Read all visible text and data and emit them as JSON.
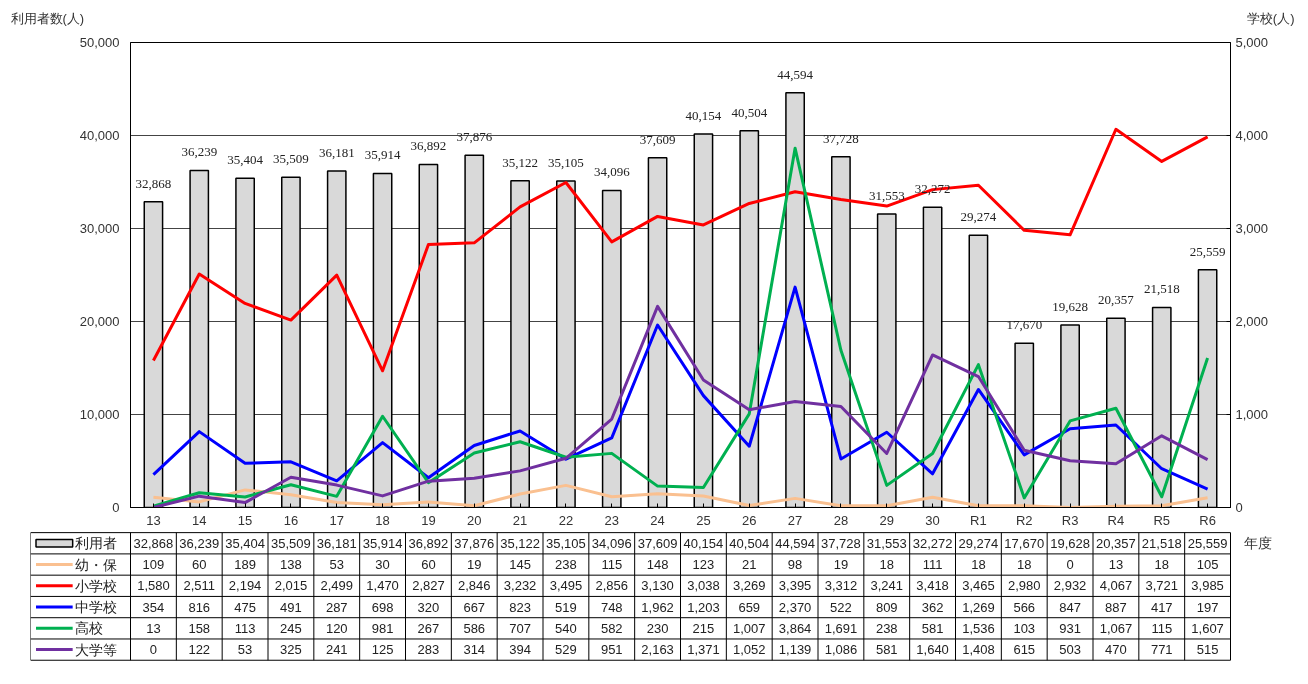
{
  "chart_data": {
    "type": "bar",
    "ylabel": "利用者数(人)",
    "y2label": "学校(人)",
    "xlabel": "年度",
    "categories": [
      "13",
      "14",
      "15",
      "16",
      "17",
      "18",
      "19",
      "20",
      "21",
      "22",
      "23",
      "24",
      "25",
      "26",
      "27",
      "28",
      "29",
      "30",
      "R1",
      "R2",
      "R3",
      "R4",
      "R5",
      "R6"
    ],
    "series": [
      {
        "name": "利用者",
        "color": "#d9d9d9",
        "values": [
          32868,
          36239,
          35404,
          35509,
          36181,
          35914,
          36892,
          37876,
          35122,
          35105,
          34096,
          37609,
          40154,
          40504,
          44594,
          37728,
          31553,
          32272,
          29274,
          17670,
          19628,
          20357,
          21518,
          25559
        ],
        "value_labels": [
          "32,868",
          "36,239",
          "35,404",
          "35,509",
          "36,181",
          "35,914",
          "36,892",
          "37,876",
          "35,122",
          "35,105",
          "34,096",
          "37,609",
          "40,154",
          "40,504",
          "44,594",
          "37,728",
          "31,553",
          "32,272",
          "29,274",
          "17,670",
          "19,628",
          "20,357",
          "21,518",
          "25,559"
        ]
      },
      {
        "name": "幼・保",
        "type": "line",
        "axis": "y2",
        "color": "#fac090",
        "values": [
          109,
          60,
          189,
          138,
          53,
          30,
          60,
          19,
          145,
          238,
          115,
          148,
          123,
          21,
          98,
          19,
          18,
          111,
          18,
          18,
          0,
          13,
          18,
          105
        ],
        "value_labels": [
          "109",
          "60",
          "189",
          "138",
          "53",
          "30",
          "60",
          "19",
          "145",
          "238",
          "115",
          "148",
          "123",
          "21",
          "98",
          "19",
          "18",
          "111",
          "18",
          "18",
          "0",
          "13",
          "18",
          "105"
        ]
      },
      {
        "name": "小学校",
        "type": "line",
        "axis": "y2",
        "color": "#ff0000",
        "values": [
          1580,
          2511,
          2194,
          2015,
          2499,
          1470,
          2827,
          2846,
          3232,
          3495,
          2856,
          3130,
          3038,
          3269,
          3395,
          3312,
          3241,
          3418,
          3465,
          2980,
          2932,
          4067,
          3721,
          3985
        ],
        "value_labels": [
          "1,580",
          "2,511",
          "2,194",
          "2,015",
          "2,499",
          "1,470",
          "2,827",
          "2,846",
          "3,232",
          "3,495",
          "2,856",
          "3,130",
          "3,038",
          "3,269",
          "3,395",
          "3,312",
          "3,241",
          "3,418",
          "3,465",
          "2,980",
          "2,932",
          "4,067",
          "3,721",
          "3,985"
        ]
      },
      {
        "name": "中学校",
        "type": "line",
        "axis": "y2",
        "color": "#0000ff",
        "values": [
          354,
          816,
          475,
          491,
          287,
          698,
          320,
          667,
          823,
          519,
          748,
          1962,
          1203,
          659,
          2370,
          522,
          809,
          362,
          1269,
          566,
          847,
          887,
          417,
          197
        ],
        "value_labels": [
          "354",
          "816",
          "475",
          "491",
          "287",
          "698",
          "320",
          "667",
          "823",
          "519",
          "748",
          "1,962",
          "1,203",
          "659",
          "2,370",
          "522",
          "809",
          "362",
          "1,269",
          "566",
          "847",
          "887",
          "417",
          "197"
        ]
      },
      {
        "name": "高校",
        "type": "line",
        "axis": "y2",
        "color": "#00b050",
        "values": [
          13,
          158,
          113,
          245,
          120,
          981,
          267,
          586,
          707,
          540,
          582,
          230,
          215,
          1007,
          3864,
          1691,
          238,
          581,
          1536,
          103,
          931,
          1067,
          115,
          1607
        ],
        "value_labels": [
          "13",
          "158",
          "113",
          "245",
          "120",
          "981",
          "267",
          "586",
          "707",
          "540",
          "582",
          "230",
          "215",
          "1,007",
          "3,864",
          "1,691",
          "238",
          "581",
          "1,536",
          "103",
          "931",
          "1,067",
          "115",
          "1,607"
        ]
      },
      {
        "name": "大学等",
        "type": "line",
        "axis": "y2",
        "color": "#7030a0",
        "values": [
          0,
          122,
          53,
          325,
          241,
          125,
          283,
          314,
          394,
          529,
          951,
          2163,
          1371,
          1052,
          1139,
          1086,
          581,
          1640,
          1408,
          615,
          503,
          470,
          771,
          515
        ],
        "value_labels": [
          "0",
          "122",
          "53",
          "325",
          "241",
          "125",
          "283",
          "314",
          "394",
          "529",
          "951",
          "2,163",
          "1,371",
          "1,052",
          "1,139",
          "1,086",
          "581",
          "1,640",
          "1,408",
          "615",
          "503",
          "470",
          "771",
          "515"
        ]
      }
    ],
    "ylim": [
      0,
      50000
    ],
    "yticks": [
      {
        "value": 0,
        "label": "0"
      },
      {
        "value": 10000,
        "label": "10,000"
      },
      {
        "value": 20000,
        "label": "20,000"
      },
      {
        "value": 30000,
        "label": "30,000"
      },
      {
        "value": 40000,
        "label": "40,000"
      },
      {
        "value": 50000,
        "label": "50,000"
      }
    ],
    "y2lim": [
      0,
      5000
    ],
    "y2ticks": [
      {
        "value": 0,
        "label": "0"
      },
      {
        "value": 1000,
        "label": "1,000"
      },
      {
        "value": 2000,
        "label": "2,000"
      },
      {
        "value": 3000,
        "label": "3,000"
      },
      {
        "value": 4000,
        "label": "4,000"
      },
      {
        "value": 5000,
        "label": "5,000"
      }
    ],
    "grid": "y",
    "legend": "bottom",
    "marker": "none",
    "line_style": "solid"
  }
}
